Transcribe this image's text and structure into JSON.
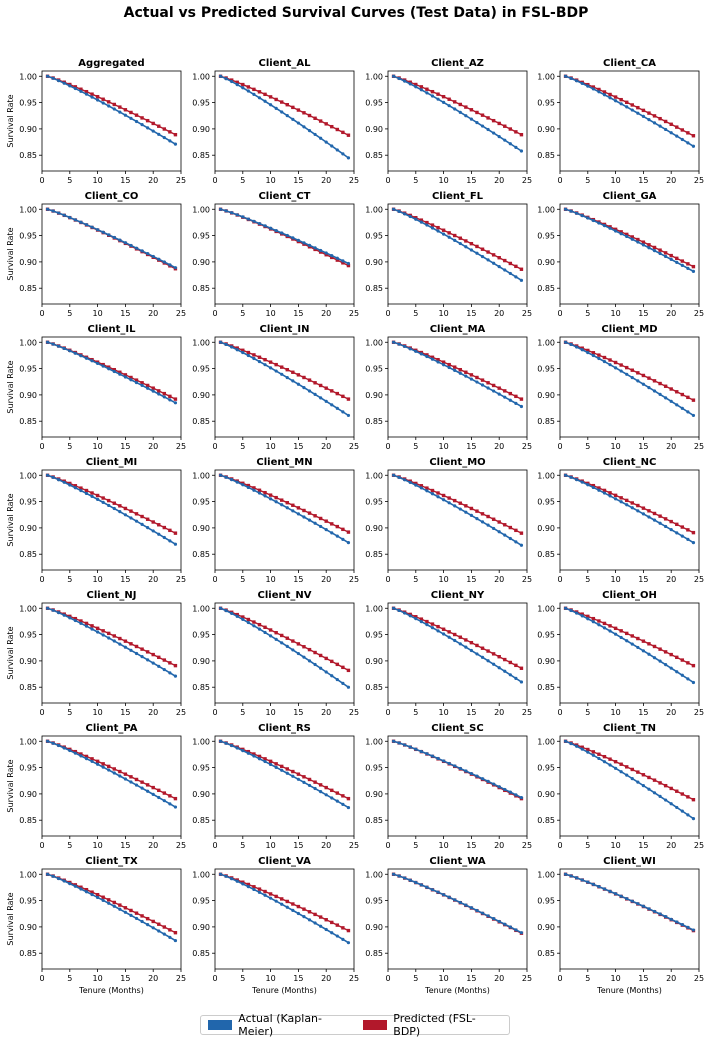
{
  "title": "Actual vs Predicted Survival Curves (Test Data) in FSL-BDP",
  "colors": {
    "actual": "#2166ac",
    "predicted": "#b2182b"
  },
  "legend": {
    "actual": "Actual (Kaplan-Meier)",
    "predicted": "Predicted (FSL-BDP)"
  },
  "chart_data": {
    "type": "line",
    "xlabel": "Tenure (Months)",
    "ylabel": "Survival Rate",
    "xlim": [
      0,
      25
    ],
    "ylim": [
      0.82,
      1.01
    ],
    "xticks": [
      0,
      5,
      10,
      15,
      20,
      25
    ],
    "yticks": [
      0.85,
      0.9,
      0.95,
      1.0
    ],
    "x_start": 1,
    "x_end": 24,
    "shape_note": "each series is a smooth decreasing curve from 1.00 at month 1 to the listed end value at month 24",
    "panels": [
      {
        "name": "Aggregated",
        "actual_end": 0.871,
        "predicted_end": 0.889
      },
      {
        "name": "Client_AL",
        "actual_end": 0.845,
        "predicted_end": 0.888
      },
      {
        "name": "Client_AZ",
        "actual_end": 0.858,
        "predicted_end": 0.889
      },
      {
        "name": "Client_CA",
        "actual_end": 0.867,
        "predicted_end": 0.887
      },
      {
        "name": "Client_CO",
        "actual_end": 0.889,
        "predicted_end": 0.887
      },
      {
        "name": "Client_CT",
        "actual_end": 0.897,
        "predicted_end": 0.893
      },
      {
        "name": "Client_FL",
        "actual_end": 0.865,
        "predicted_end": 0.886
      },
      {
        "name": "Client_GA",
        "actual_end": 0.882,
        "predicted_end": 0.891
      },
      {
        "name": "Client_IL",
        "actual_end": 0.885,
        "predicted_end": 0.892
      },
      {
        "name": "Client_IN",
        "actual_end": 0.861,
        "predicted_end": 0.892
      },
      {
        "name": "Client_MA",
        "actual_end": 0.878,
        "predicted_end": 0.892
      },
      {
        "name": "Client_MD",
        "actual_end": 0.861,
        "predicted_end": 0.89
      },
      {
        "name": "Client_MI",
        "actual_end": 0.869,
        "predicted_end": 0.89
      },
      {
        "name": "Client_MN",
        "actual_end": 0.872,
        "predicted_end": 0.892
      },
      {
        "name": "Client_MO",
        "actual_end": 0.867,
        "predicted_end": 0.89
      },
      {
        "name": "Client_NC",
        "actual_end": 0.872,
        "predicted_end": 0.891
      },
      {
        "name": "Client_NJ",
        "actual_end": 0.871,
        "predicted_end": 0.891
      },
      {
        "name": "Client_NV",
        "actual_end": 0.85,
        "predicted_end": 0.882
      },
      {
        "name": "Client_NY",
        "actual_end": 0.86,
        "predicted_end": 0.886
      },
      {
        "name": "Client_OH",
        "actual_end": 0.859,
        "predicted_end": 0.891
      },
      {
        "name": "Client_PA",
        "actual_end": 0.875,
        "predicted_end": 0.891
      },
      {
        "name": "Client_RS",
        "actual_end": 0.874,
        "predicted_end": 0.891
      },
      {
        "name": "Client_SC",
        "actual_end": 0.893,
        "predicted_end": 0.891
      },
      {
        "name": "Client_TN",
        "actual_end": 0.853,
        "predicted_end": 0.889
      },
      {
        "name": "Client_TX",
        "actual_end": 0.874,
        "predicted_end": 0.889
      },
      {
        "name": "Client_VA",
        "actual_end": 0.87,
        "predicted_end": 0.893
      },
      {
        "name": "Client_WA",
        "actual_end": 0.889,
        "predicted_end": 0.888
      },
      {
        "name": "Client_WI",
        "actual_end": 0.894,
        "predicted_end": 0.893
      }
    ]
  }
}
